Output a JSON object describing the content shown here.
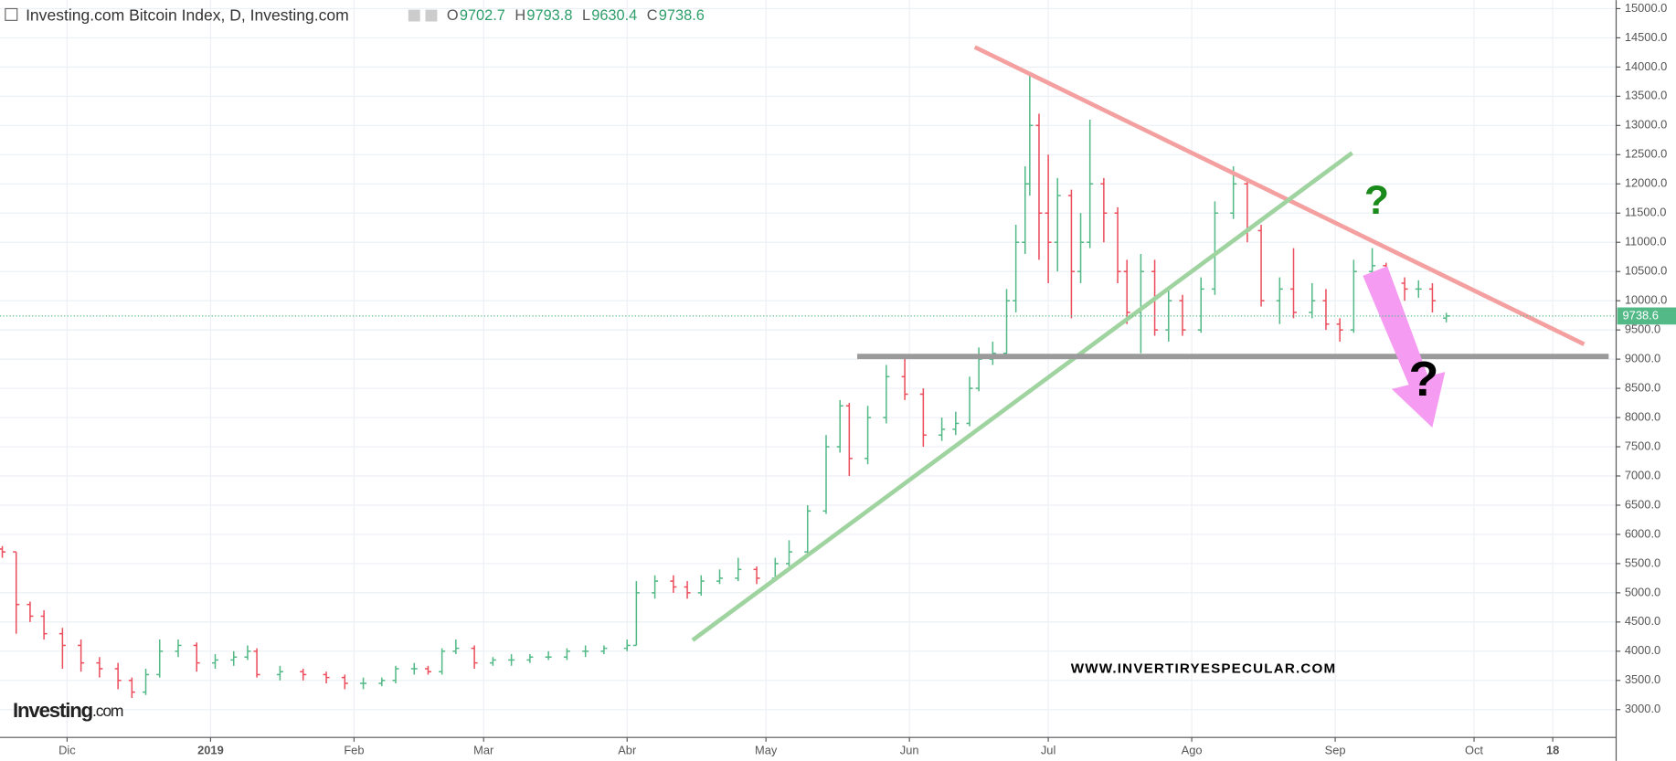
{
  "chart_data": {
    "type": "ohlc",
    "title": "Investing.com Bitcoin Index, D, Investing.com",
    "ohlc_labels": [
      "O",
      "H",
      "L",
      "C"
    ],
    "watermark": "WWW.INVERTIRYESPECULAR.COM",
    "logo": [
      "Investing",
      ".com"
    ],
    "annotations": [
      "?",
      "?"
    ],
    "up_color": "#53b987",
    "down_color": "#eb4d5c",
    "x": [
      0,
      3,
      6,
      9,
      13,
      17,
      21,
      25,
      28,
      31,
      34,
      38,
      42,
      46,
      50,
      53,
      55,
      60,
      65,
      70,
      74,
      78,
      82,
      85,
      89,
      92,
      95,
      98,
      102,
      106,
      110,
      114,
      118,
      122,
      126,
      130,
      135,
      137,
      141,
      145,
      148,
      151,
      155,
      159,
      163,
      167,
      170,
      174,
      178,
      181,
      183,
      187,
      191,
      195,
      199,
      203,
      206,
      209,
      211,
      214,
      217,
      219,
      221,
      222,
      224,
      226,
      228,
      231,
      233,
      235,
      238,
      241,
      243,
      246,
      249,
      252,
      255,
      259,
      262,
      266,
      269,
      272,
      276,
      279,
      283,
      286,
      289,
      292,
      296,
      299,
      303,
      306,
      309,
      312
    ],
    "open": [
      5750,
      5700,
      4800,
      4600,
      4300,
      4100,
      3800,
      3700,
      3500,
      3300,
      3600,
      4000,
      4100,
      3800,
      3850,
      3900,
      4000,
      3600,
      3650,
      3600,
      3550,
      3450,
      3450,
      3500,
      3700,
      3700,
      3650,
      4000,
      4050,
      3800,
      3850,
      3850,
      3900,
      3900,
      4000,
      4000,
      4050,
      4100,
      5000,
      5200,
      5100,
      5000,
      5200,
      5250,
      5400,
      5250,
      5500,
      5700,
      6400,
      7500,
      8200,
      7300,
      8000,
      8700,
      8400,
      7700,
      7800,
      7900,
      8500,
      9000,
      9100,
      10000,
      11000,
      12000,
      13000,
      11500,
      11000,
      11800,
      10500,
      11000,
      12000,
      11500,
      10500,
      9800,
      10500,
      9500,
      10000,
      9500,
      10200,
      11500,
      12000,
      11200,
      10000,
      10200,
      9800,
      10000,
      9600,
      9500,
      10500,
      10600,
      10300,
      10200,
      10200,
      9702.7
    ],
    "high": [
      5800,
      5700,
      4850,
      4700,
      4400,
      4200,
      3900,
      3800,
      3550,
      3700,
      4200,
      4200,
      4150,
      3950,
      4000,
      4100,
      4050,
      3750,
      3700,
      3650,
      3600,
      3550,
      3550,
      3750,
      3800,
      3750,
      4050,
      4200,
      4100,
      3900,
      3950,
      3950,
      4000,
      4050,
      4100,
      4100,
      4200,
      5200,
      5300,
      5300,
      5200,
      5300,
      5400,
      5600,
      5450,
      5600,
      5900,
      6500,
      7700,
      8300,
      8250,
      8200,
      8900,
      9050,
      8500,
      8000,
      8100,
      8700,
      9200,
      9300,
      10200,
      11300,
      12300,
      13900,
      13200,
      12500,
      12100,
      11900,
      11500,
      13100,
      12100,
      11600,
      10700,
      10800,
      10700,
      10200,
      10100,
      10400,
      11700,
      12300,
      12100,
      11300,
      10400,
      10900,
      10300,
      10200,
      9700,
      10700,
      10900,
      10650,
      10400,
      10350,
      10300,
      9793.8
    ],
    "low": [
      5600,
      4300,
      4500,
      4200,
      3700,
      3650,
      3550,
      3350,
      3200,
      3250,
      3550,
      3900,
      3650,
      3700,
      3750,
      3850,
      3550,
      3500,
      3500,
      3450,
      3350,
      3350,
      3400,
      3450,
      3600,
      3600,
      3600,
      3950,
      3700,
      3750,
      3750,
      3800,
      3850,
      3850,
      3900,
      3950,
      4000,
      4100,
      4900,
      5000,
      4900,
      4950,
      5150,
      5200,
      5150,
      5200,
      5450,
      5650,
      6350,
      7400,
      7000,
      7200,
      7900,
      8300,
      7500,
      7600,
      7700,
      7850,
      8450,
      8900,
      9050,
      9800,
      10800,
      11800,
      10700,
      10300,
      10500,
      9700,
      10300,
      10900,
      11000,
      10300,
      9600,
      9100,
      9400,
      9300,
      9400,
      9450,
      10100,
      11400,
      11000,
      9900,
      9600,
      9700,
      9700,
      9500,
      9300,
      9450,
      10300,
      10100,
      10000,
      10050,
      9800,
      9630.4
    ],
    "close": [
      5700,
      4800,
      4600,
      4300,
      4100,
      3800,
      3700,
      3500,
      3300,
      3600,
      4000,
      4100,
      3800,
      3850,
      3900,
      4000,
      3600,
      3650,
      3600,
      3550,
      3450,
      3450,
      3500,
      3700,
      3700,
      3650,
      4000,
      4050,
      3800,
      3850,
      3850,
      3900,
      3900,
      4000,
      4000,
      4050,
      4100,
      5000,
      5200,
      5100,
      5000,
      5200,
      5250,
      5400,
      5250,
      5500,
      5700,
      6400,
      7500,
      8200,
      7300,
      8000,
      8700,
      8400,
      7700,
      7800,
      7900,
      8500,
      9000,
      9100,
      10000,
      11000,
      12000,
      13000,
      11500,
      11000,
      11800,
      10500,
      11000,
      12000,
      11500,
      10500,
      9800,
      10500,
      9500,
      10000,
      9500,
      10200,
      11500,
      12000,
      11200,
      10000,
      10200,
      9800,
      10000,
      9600,
      9500,
      10500,
      10600,
      10300,
      10200,
      10200,
      10000,
      9738.6
    ],
    "xlim": [
      -0.5,
      348.7
    ],
    "xticks": [
      {
        "value": 14,
        "label": "Dic"
      },
      {
        "value": 45,
        "label": "2019"
      },
      {
        "value": 76,
        "label": "Feb"
      },
      {
        "value": 104,
        "label": "Mar"
      },
      {
        "value": 135,
        "label": "Abr"
      },
      {
        "value": 165,
        "label": "May"
      },
      {
        "value": 196,
        "label": "Jun"
      },
      {
        "value": 226,
        "label": "Jul"
      },
      {
        "value": 257,
        "label": "Ago"
      },
      {
        "value": 288,
        "label": "Sep"
      },
      {
        "value": 318,
        "label": "Oct"
      },
      {
        "value": 335,
        "label": "18"
      }
    ],
    "ylim": [
      2525,
      15146
    ],
    "yticks": [
      {
        "value": 3000,
        "label": "3000.0"
      },
      {
        "value": 3500,
        "label": "3500.0"
      },
      {
        "value": 4000,
        "label": "4000.0"
      },
      {
        "value": 4500,
        "label": "4500.0"
      },
      {
        "value": 5000,
        "label": "5000.0"
      },
      {
        "value": 5500,
        "label": "5500.0"
      },
      {
        "value": 6000,
        "label": "6000.0"
      },
      {
        "value": 6500,
        "label": "6500.0"
      },
      {
        "value": 7000,
        "label": "7000.0"
      },
      {
        "value": 7500,
        "label": "7500.0"
      },
      {
        "value": 8000,
        "label": "8000.0"
      },
      {
        "value": 8500,
        "label": "8500.0"
      },
      {
        "value": 9000,
        "label": "9000.0"
      },
      {
        "value": 9500,
        "label": "9500.0"
      },
      {
        "value": 10000,
        "label": "10000.0"
      },
      {
        "value": 10500,
        "label": "10500.0"
      },
      {
        "value": 11000,
        "label": "11000.0"
      },
      {
        "value": 11500,
        "label": "11500.0"
      },
      {
        "value": 12000,
        "label": "12000.0"
      },
      {
        "value": 12500,
        "label": "12500.0"
      },
      {
        "value": 13000,
        "label": "13000.0"
      },
      {
        "value": 13500,
        "label": "13500.0"
      },
      {
        "value": 14000,
        "label": "14000.0"
      },
      {
        "value": 14500,
        "label": "14500.0"
      },
      {
        "value": 15000,
        "label": "15000.0"
      }
    ],
    "grid": true
  }
}
